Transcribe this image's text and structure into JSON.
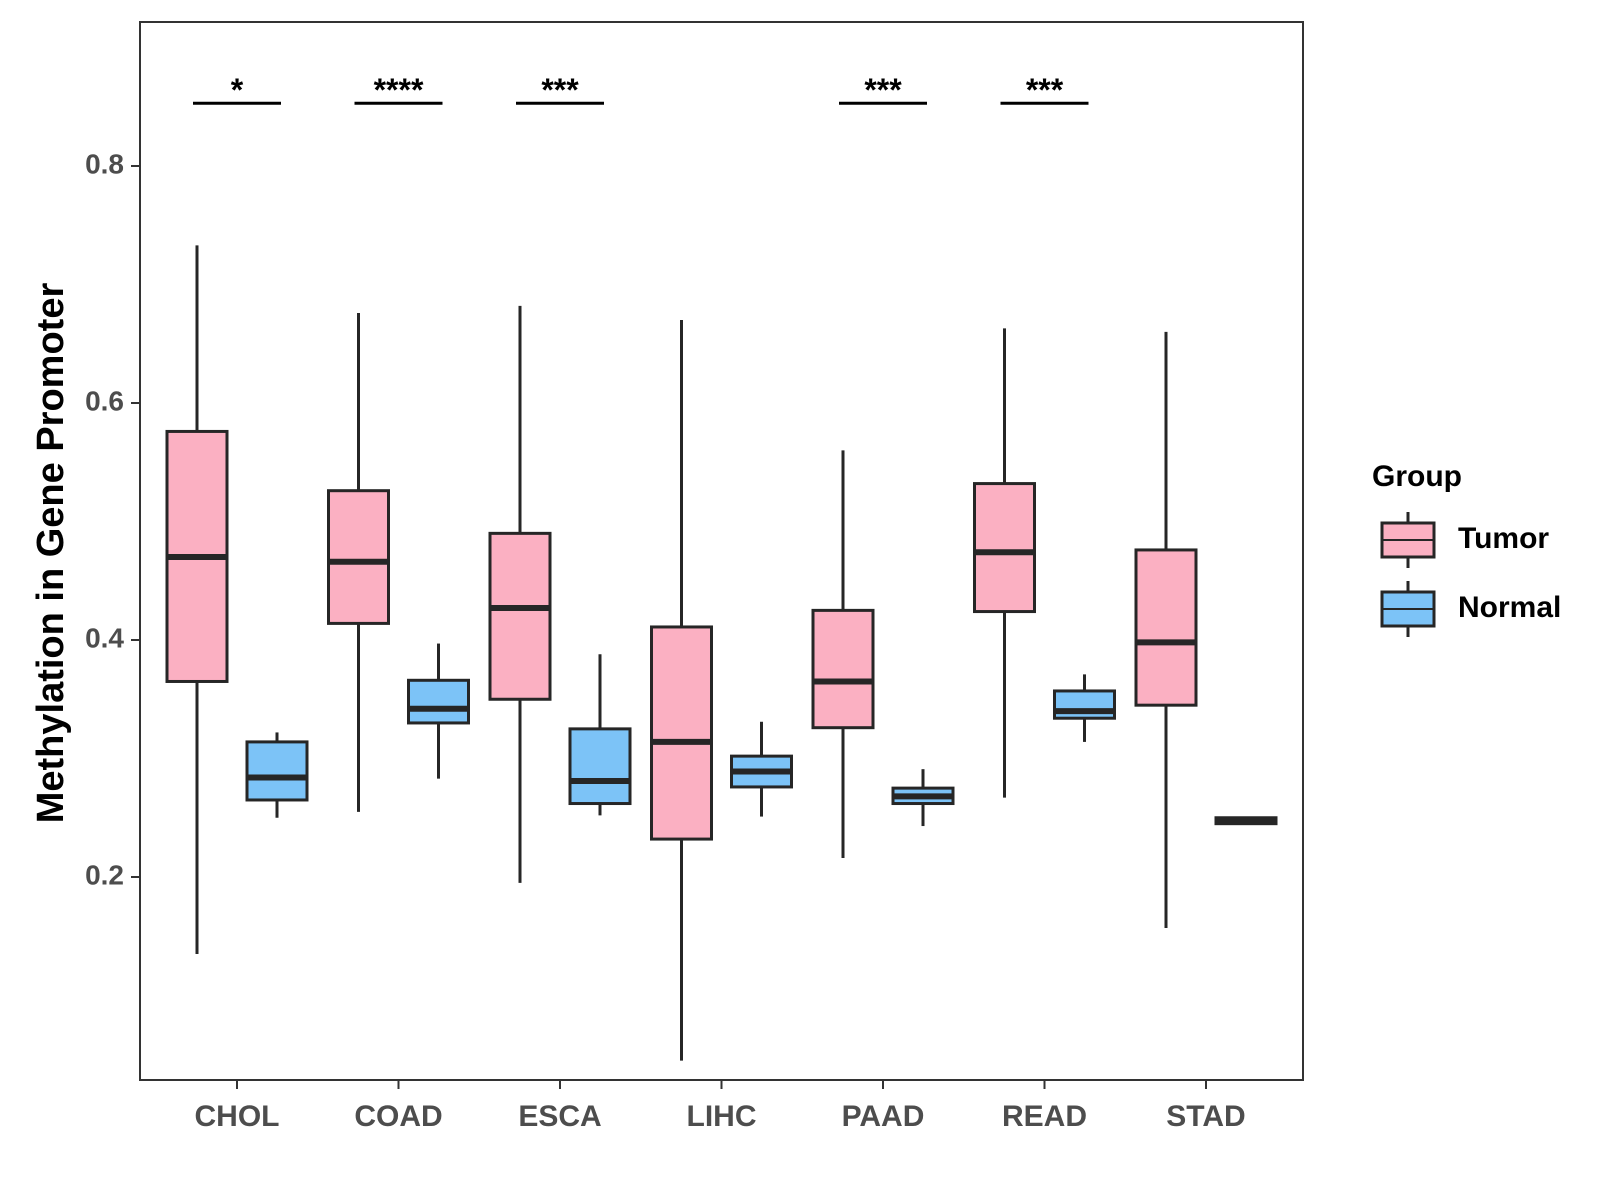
{
  "chart_data": {
    "type": "boxplot",
    "title": "",
    "xlabel": "",
    "ylabel": "Methylation in Gene Promoter",
    "ylim": [
      0.02,
      0.9
    ],
    "yticks": [
      0.2,
      0.4,
      0.6,
      0.8
    ],
    "ytick_labels": [
      "0.2",
      "0.4",
      "0.6",
      "0.8"
    ],
    "categories": [
      "CHOL",
      "COAD",
      "ESCA",
      "LIHC",
      "PAAD",
      "READ",
      "STAD"
    ],
    "legend": {
      "title": "Group",
      "position": "right",
      "entries": [
        {
          "name": "Tumor",
          "color": "#fbb0c2"
        },
        {
          "name": "Normal",
          "color": "#7cc3f7"
        }
      ]
    },
    "series": [
      {
        "name": "Tumor",
        "color": "#fbb0c2",
        "boxes": [
          {
            "min": 0.135,
            "q1": 0.365,
            "median": 0.47,
            "q3": 0.576,
            "max": 0.733
          },
          {
            "min": 0.255,
            "q1": 0.414,
            "median": 0.466,
            "q3": 0.526,
            "max": 0.676
          },
          {
            "min": 0.195,
            "q1": 0.35,
            "median": 0.427,
            "q3": 0.49,
            "max": 0.682
          },
          {
            "min": 0.045,
            "q1": 0.232,
            "median": 0.314,
            "q3": 0.411,
            "max": 0.67
          },
          {
            "min": 0.216,
            "q1": 0.326,
            "median": 0.365,
            "q3": 0.425,
            "max": 0.56
          },
          {
            "min": 0.267,
            "q1": 0.424,
            "median": 0.474,
            "q3": 0.532,
            "max": 0.663
          },
          {
            "min": 0.157,
            "q1": 0.345,
            "median": 0.398,
            "q3": 0.476,
            "max": 0.66
          }
        ]
      },
      {
        "name": "Normal",
        "color": "#7cc3f7",
        "boxes": [
          {
            "min": 0.25,
            "q1": 0.265,
            "median": 0.284,
            "q3": 0.314,
            "max": 0.322
          },
          {
            "min": 0.283,
            "q1": 0.33,
            "median": 0.342,
            "q3": 0.366,
            "max": 0.397
          },
          {
            "min": 0.252,
            "q1": 0.262,
            "median": 0.281,
            "q3": 0.325,
            "max": 0.388
          },
          {
            "min": 0.251,
            "q1": 0.276,
            "median": 0.289,
            "q3": 0.302,
            "max": 0.331
          },
          {
            "min": 0.243,
            "q1": 0.262,
            "median": 0.268,
            "q3": 0.275,
            "max": 0.291
          },
          {
            "min": 0.314,
            "q1": 0.334,
            "median": 0.34,
            "q3": 0.357,
            "max": 0.371
          },
          {
            "min": 0.244,
            "q1": 0.245,
            "median": 0.247,
            "q3": 0.25,
            "max": 0.251
          }
        ]
      }
    ],
    "significance": [
      {
        "category": "CHOL",
        "label": "*"
      },
      {
        "category": "COAD",
        "label": "****"
      },
      {
        "category": "ESCA",
        "label": "***"
      },
      {
        "category": "PAAD",
        "label": "***"
      },
      {
        "category": "READ",
        "label": "***"
      }
    ],
    "significance_level": 0.853,
    "grid": false
  },
  "colors": {
    "box_stroke": "#262626",
    "axis": "#333333"
  }
}
